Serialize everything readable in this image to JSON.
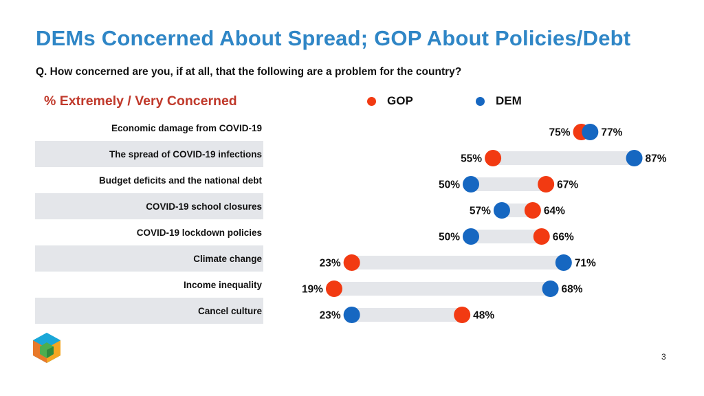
{
  "title": "DEMs Concerned About Spread; GOP About Policies/Debt",
  "subtitle": "Q. How concerned are you, if at all, that the following are a problem for the country?",
  "metric_label": "% Extremely / Very Concerned",
  "page_number": "3",
  "colors": {
    "title": "#2f86c6",
    "metric_label": "#c0392b",
    "gop": "#f23a12",
    "dem": "#1667c1",
    "track": "#e4e6ea"
  },
  "chart_data": {
    "type": "dot-range",
    "x_unit": "%",
    "xlim": [
      0,
      100
    ],
    "categories": [
      "Economic damage from COVID-19",
      "The spread of COVID-19 infections",
      "Budget deficits and the national debt",
      "COVID-19 school closures",
      "COVID-19 lockdown policies",
      "Climate change",
      "Income inequality",
      "Cancel culture"
    ],
    "series": [
      {
        "name": "GOP",
        "values": [
          75,
          55,
          67,
          64,
          66,
          23,
          19,
          48
        ]
      },
      {
        "name": "DEM",
        "values": [
          77,
          87,
          50,
          57,
          50,
          71,
          68,
          23
        ]
      }
    ],
    "legend": "top"
  }
}
